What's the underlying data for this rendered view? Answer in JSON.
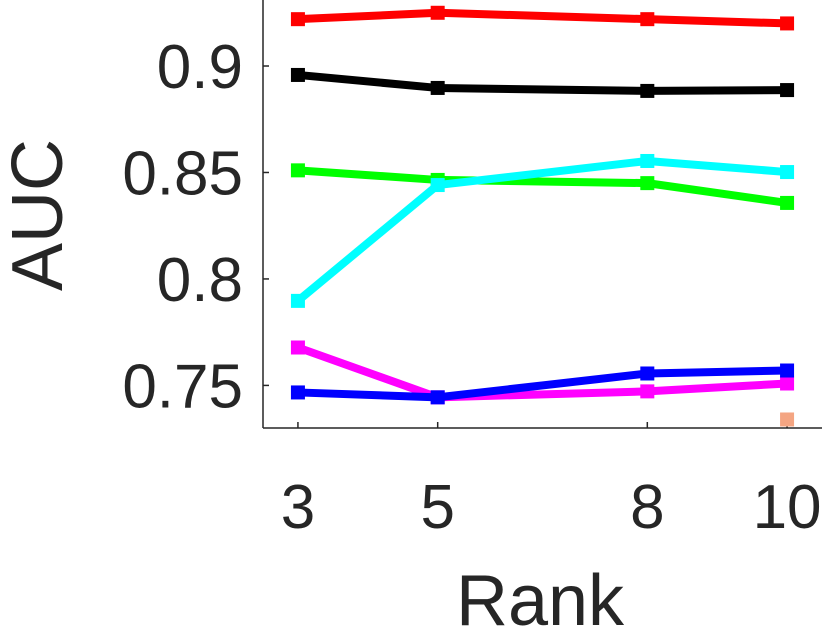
{
  "chart_data": {
    "type": "line",
    "xlabel": "Rank",
    "ylabel": "AUC",
    "x": [
      3,
      5,
      8,
      10
    ],
    "series": [
      {
        "color": "#ff0000",
        "values": [
          0.922,
          0.925,
          0.922,
          0.92
        ]
      },
      {
        "color": "#000000",
        "values": [
          0.8958,
          0.8897,
          0.8883,
          0.8887
        ]
      },
      {
        "color": "#00ff00",
        "values": [
          0.851,
          0.8465,
          0.845,
          0.8357
        ]
      },
      {
        "color": "#00ffff",
        "values": [
          0.7897,
          0.8441,
          0.8554,
          0.8502
        ]
      },
      {
        "color": "#ff00ff",
        "values": [
          0.7678,
          0.7444,
          0.7472,
          0.7509
        ]
      },
      {
        "color": "#0000ff",
        "values": [
          0.7467,
          0.7444,
          0.7556,
          0.757
        ]
      },
      {
        "color": "#f4a582",
        "values": [
          null,
          null,
          null,
          0.734
        ]
      }
    ],
    "xlim": [
      2.5,
      10.5
    ],
    "ylim": [
      0.73,
      0.931
    ],
    "xticks": [
      3,
      5,
      8,
      10
    ],
    "yticks": [
      0.75,
      0.8,
      0.85,
      0.9
    ],
    "grid": false
  }
}
